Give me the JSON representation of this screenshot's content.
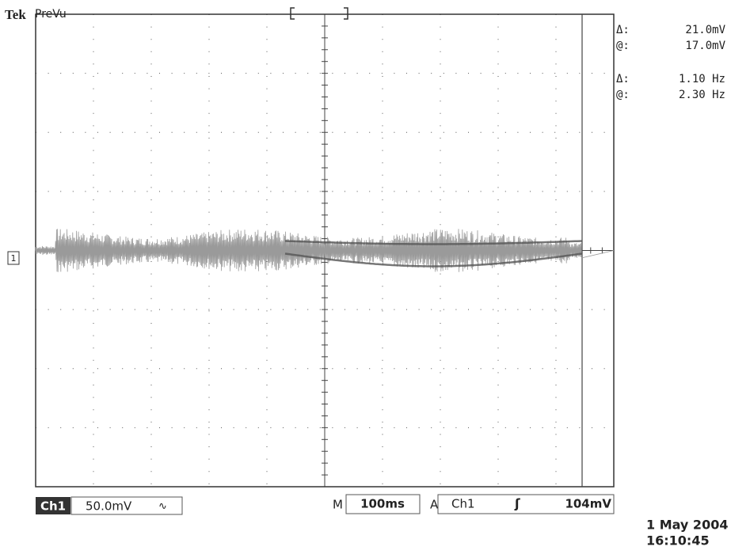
{
  "header": {
    "brand": "Tek",
    "mode": "PreVu"
  },
  "channel_marker": "1",
  "cursors": [
    {
      "delta_label": "Δ:",
      "delta": "21.0mV",
      "at_label": "@:",
      "at": "17.0mV"
    },
    {
      "delta_label": "Δ:",
      "delta": "1.10 Hz",
      "at_label": "@:",
      "at": "2.30 Hz"
    }
  ],
  "status": {
    "channel": "Ch1",
    "scale": "50.0mV",
    "coupling": "∿",
    "timebase_label": "M",
    "timebase": "100ms",
    "trigger_label": "A",
    "trigger_source": "Ch1",
    "trigger_slope": "ʃ",
    "trigger_level": "104mV"
  },
  "timestamp": {
    "date": "1 May 2004",
    "time": "16:10:45"
  }
}
